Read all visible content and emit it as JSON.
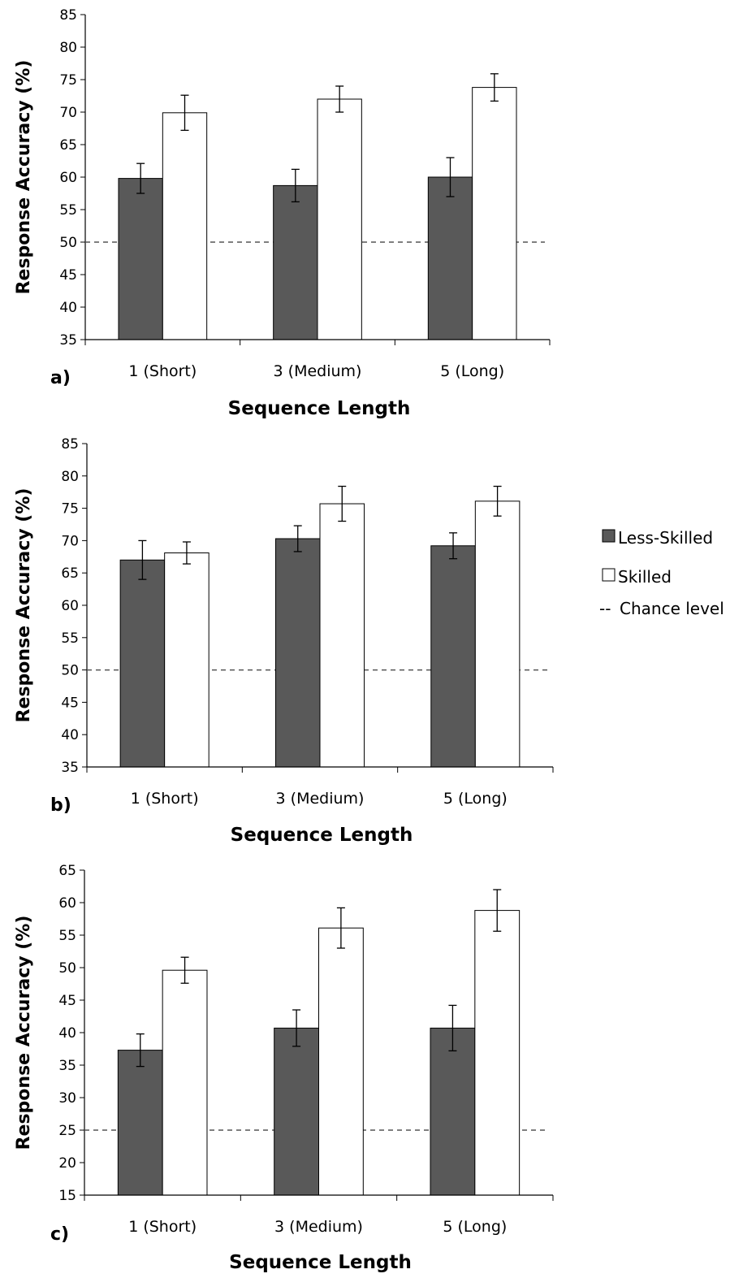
{
  "chart_data": [
    {
      "type": "bar",
      "panel_label": "a)",
      "categories": [
        "1 (Short)",
        "3 (Medium)",
        "5 (Long)"
      ],
      "series": [
        {
          "name": "Less-Skilled",
          "values": [
            59.8,
            58.7,
            60.0
          ],
          "errors": [
            2.3,
            2.5,
            3.0
          ]
        },
        {
          "name": "Skilled",
          "values": [
            69.9,
            72.0,
            73.8
          ],
          "errors": [
            2.7,
            2.0,
            2.1
          ]
        }
      ],
      "chance_level": 50,
      "xlabel": "Sequence Length",
      "ylabel": "Response Accuracy (%)",
      "ylim": [
        35,
        85
      ],
      "yticks": [
        35,
        40,
        45,
        50,
        55,
        60,
        65,
        70,
        75,
        80,
        85
      ]
    },
    {
      "type": "bar",
      "panel_label": "b)",
      "categories": [
        "1 (Short)",
        "3 (Medium)",
        "5 (Long)"
      ],
      "series": [
        {
          "name": "Less-Skilled",
          "values": [
            67.0,
            70.3,
            69.2
          ],
          "errors": [
            3.0,
            2.0,
            2.0
          ]
        },
        {
          "name": "Skilled",
          "values": [
            68.1,
            75.7,
            76.1
          ],
          "errors": [
            1.7,
            2.7,
            2.3
          ]
        }
      ],
      "chance_level": 50,
      "xlabel": "Sequence Length",
      "ylabel": "Response Accuracy (%)",
      "ylim": [
        35,
        85
      ],
      "yticks": [
        35,
        40,
        45,
        50,
        55,
        60,
        65,
        70,
        75,
        80,
        85
      ]
    },
    {
      "type": "bar",
      "panel_label": "c)",
      "categories": [
        "1 (Short)",
        "3 (Medium)",
        "5 (Long)"
      ],
      "series": [
        {
          "name": "Less-Skilled",
          "values": [
            37.3,
            40.7,
            40.7
          ],
          "errors": [
            2.5,
            2.8,
            3.5
          ]
        },
        {
          "name": "Skilled",
          "values": [
            49.6,
            56.1,
            58.8
          ],
          "errors": [
            2.0,
            3.1,
            3.2
          ]
        }
      ],
      "chance_level": 25,
      "xlabel": "Sequence Length",
      "ylabel": "Response Accuracy (%)",
      "ylim": [
        15,
        65
      ],
      "yticks": [
        15,
        20,
        25,
        30,
        35,
        40,
        45,
        50,
        55,
        60,
        65
      ]
    }
  ],
  "legend": {
    "items": [
      {
        "label": "Less-Skilled",
        "color": "#595959",
        "marker": "filled-square"
      },
      {
        "label": "Skilled",
        "color": "#ffffff",
        "marker": "open-square"
      },
      {
        "label": "Chance level",
        "marker": "--"
      }
    ]
  },
  "colors": {
    "less_skilled": "#595959",
    "skilled": "#ffffff",
    "outline": "#000000",
    "chance_line": "#555555"
  }
}
